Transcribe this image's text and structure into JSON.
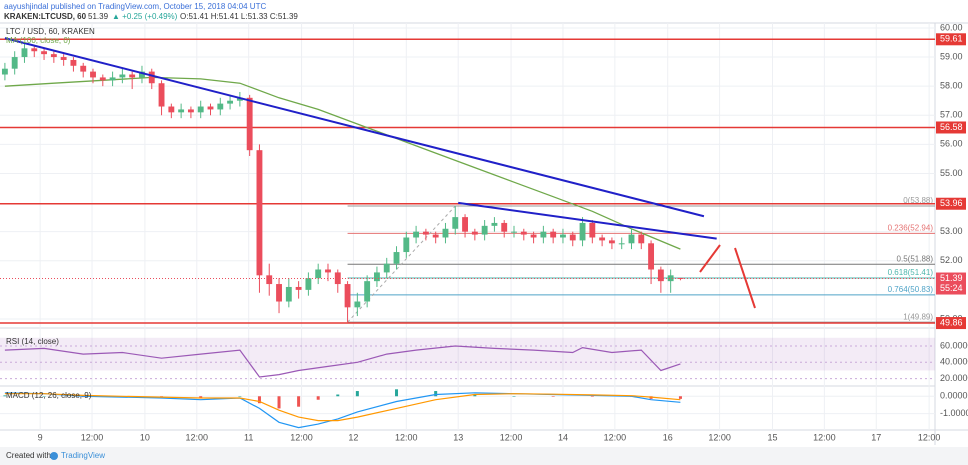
{
  "chart_data": {
    "type": "candlestick",
    "header": "aayushjindal published on TradingView.com, October 15, 2018 04:04 UTC",
    "symbol": "KRAKEN:LTCUSD, 60",
    "change": "▲ +0.25 (+0.49%)",
    "ohlc_text": "O:51.41 H:51.41 L:51.33 C:51.39",
    "title": "LTC / USD, 60, KRAKEN",
    "ma_label": "MA (100, close, 0)",
    "rsi_label": "RSI (14, close)",
    "macd_label": "MACD (12, 26, close, 9)",
    "footer": "Created with",
    "brand": "TradingView",
    "countdown": "55:24",
    "up_color": "#53b987",
    "down_color": "#eb4d5c",
    "xlim": [
      -0.5,
      95
    ],
    "xticks": [
      {
        "value": 3.6,
        "label": "9"
      },
      {
        "value": 8.9,
        "label": "12:00"
      },
      {
        "value": 14.3,
        "label": "10"
      },
      {
        "value": 19.6,
        "label": "12:00"
      },
      {
        "value": 24.9,
        "label": "11"
      },
      {
        "value": 30.3,
        "label": "12:00"
      },
      {
        "value": 35.6,
        "label": "12"
      },
      {
        "value": 41.0,
        "label": "12:00"
      },
      {
        "value": 46.3,
        "label": "13"
      },
      {
        "value": 51.7,
        "label": "12:00"
      },
      {
        "value": 57.0,
        "label": "14"
      },
      {
        "value": 62.3,
        "label": "12:00"
      },
      {
        "value": 67.7,
        "label": "16"
      },
      {
        "value": 73.0,
        "label": "12:00"
      },
      {
        "value": 78.4,
        "label": "15"
      },
      {
        "value": 83.7,
        "label": "12:00"
      },
      {
        "value": 89.0,
        "label": "17"
      },
      {
        "value": 94.4,
        "label": "12:00"
      }
    ],
    "ylim": [
      49.69,
      60.17
    ],
    "yticks": [
      {
        "value": 60,
        "label": "60.00"
      },
      {
        "value": 59,
        "label": "59.00"
      },
      {
        "value": 58,
        "label": "58.00"
      },
      {
        "value": 57,
        "label": "57.00"
      },
      {
        "value": 56,
        "label": "56.00"
      },
      {
        "value": 55,
        "label": "55.00"
      },
      {
        "value": 53,
        "label": "53.00"
      },
      {
        "value": 52,
        "label": "52.00"
      },
      {
        "value": 50,
        "label": "50.00"
      }
    ],
    "grid": true,
    "candles": [
      [
        58.4,
        58.8,
        58.2,
        58.6
      ],
      [
        58.6,
        59.2,
        58.4,
        59.0
      ],
      [
        59.0,
        59.5,
        58.8,
        59.3
      ],
      [
        59.3,
        59.4,
        59.0,
        59.2
      ],
      [
        59.2,
        59.3,
        58.9,
        59.1
      ],
      [
        59.1,
        59.2,
        58.8,
        59.0
      ],
      [
        59.0,
        59.1,
        58.7,
        58.9
      ],
      [
        58.9,
        59.0,
        58.5,
        58.7
      ],
      [
        58.7,
        58.8,
        58.3,
        58.5
      ],
      [
        58.5,
        58.6,
        58.1,
        58.3
      ],
      [
        58.3,
        58.4,
        58.0,
        58.2
      ],
      [
        58.2,
        58.5,
        58.0,
        58.3
      ],
      [
        58.3,
        58.6,
        58.1,
        58.4
      ],
      [
        58.4,
        58.5,
        57.9,
        58.3
      ],
      [
        58.3,
        58.7,
        58.1,
        58.5
      ],
      [
        58.5,
        58.6,
        57.9,
        58.1
      ],
      [
        58.1,
        58.2,
        57.0,
        57.3
      ],
      [
        57.3,
        57.4,
        56.9,
        57.1
      ],
      [
        57.1,
        57.4,
        56.9,
        57.2
      ],
      [
        57.2,
        57.3,
        56.9,
        57.1
      ],
      [
        57.1,
        57.5,
        56.9,
        57.3
      ],
      [
        57.3,
        57.4,
        57.0,
        57.2
      ],
      [
        57.2,
        57.6,
        57.0,
        57.4
      ],
      [
        57.4,
        57.7,
        57.2,
        57.5
      ],
      [
        57.5,
        57.8,
        57.3,
        57.6
      ],
      [
        57.6,
        57.7,
        55.6,
        55.8
      ],
      [
        55.8,
        56.0,
        50.9,
        51.5
      ],
      [
        51.5,
        51.9,
        50.8,
        51.2
      ],
      [
        51.2,
        51.4,
        50.2,
        50.6
      ],
      [
        50.6,
        51.4,
        50.4,
        51.1
      ],
      [
        51.1,
        51.3,
        50.7,
        51.0
      ],
      [
        51.0,
        51.6,
        50.8,
        51.4
      ],
      [
        51.4,
        51.9,
        51.2,
        51.7
      ],
      [
        51.7,
        51.9,
        51.3,
        51.6
      ],
      [
        51.6,
        51.7,
        50.9,
        51.2
      ],
      [
        51.2,
        51.3,
        49.89,
        50.4
      ],
      [
        50.4,
        50.9,
        50.1,
        50.6
      ],
      [
        50.6,
        51.5,
        50.4,
        51.3
      ],
      [
        51.3,
        51.8,
        51.1,
        51.6
      ],
      [
        51.6,
        52.1,
        51.4,
        51.9
      ],
      [
        51.9,
        52.5,
        51.7,
        52.3
      ],
      [
        52.3,
        53.0,
        52.1,
        52.8
      ],
      [
        52.8,
        53.2,
        52.6,
        53.0
      ],
      [
        53.0,
        53.1,
        52.7,
        52.9
      ],
      [
        52.9,
        53.0,
        52.6,
        52.8
      ],
      [
        52.8,
        53.3,
        52.6,
        53.1
      ],
      [
        53.1,
        53.88,
        52.9,
        53.5
      ],
      [
        53.5,
        53.6,
        52.8,
        53.0
      ],
      [
        53.0,
        53.1,
        52.7,
        52.9
      ],
      [
        52.9,
        53.4,
        52.7,
        53.2
      ],
      [
        53.2,
        53.5,
        53.0,
        53.3
      ],
      [
        53.3,
        53.4,
        52.8,
        53.0
      ],
      [
        53.0,
        53.2,
        52.8,
        53.0
      ],
      [
        53.0,
        53.1,
        52.7,
        52.9
      ],
      [
        52.9,
        53.0,
        52.6,
        52.8
      ],
      [
        52.8,
        53.2,
        52.6,
        53.0
      ],
      [
        53.0,
        53.1,
        52.6,
        52.8
      ],
      [
        52.8,
        53.1,
        52.6,
        52.9
      ],
      [
        52.9,
        53.0,
        52.5,
        52.7
      ],
      [
        52.7,
        53.5,
        52.5,
        53.3
      ],
      [
        53.3,
        53.4,
        52.6,
        52.8
      ],
      [
        52.8,
        52.9,
        52.5,
        52.7
      ],
      [
        52.7,
        52.8,
        52.4,
        52.6
      ],
      [
        52.6,
        52.8,
        52.4,
        52.6
      ],
      [
        52.6,
        53.1,
        52.4,
        52.9
      ],
      [
        52.9,
        53.0,
        52.4,
        52.6
      ],
      [
        52.6,
        52.7,
        51.2,
        51.7
      ],
      [
        51.7,
        51.8,
        50.9,
        51.3
      ],
      [
        51.3,
        51.7,
        50.9,
        51.5
      ],
      [
        51.41,
        51.41,
        51.33,
        51.39
      ]
    ],
    "ma": {
      "color": "#6fa84a",
      "x": [
        0,
        5,
        10,
        15,
        20,
        24,
        28,
        32,
        36,
        40,
        44,
        48,
        52,
        56,
        60,
        64,
        69
      ],
      "values": [
        58.0,
        58.1,
        58.2,
        58.3,
        58.25,
        58.1,
        57.6,
        57.2,
        56.7,
        56.2,
        55.7,
        55.2,
        54.7,
        54.2,
        53.7,
        53.1,
        52.4
      ]
    },
    "levels": [
      59.61,
      56.58,
      53.96,
      49.86
    ],
    "level_color": "#e53935",
    "trendlines": [
      [
        [
          0,
          59.65
        ],
        [
          71.4,
          53.53
        ]
      ],
      [
        [
          46.3,
          53.99
        ],
        [
          72.7,
          52.76
        ]
      ]
    ],
    "trend_color": "#2020c8",
    "fib": {
      "start": 35,
      "levels": [
        {
          "value": 53.88,
          "label": "0(53.88)"
        },
        {
          "value": 52.94,
          "label": "0.236(52.94)"
        },
        {
          "value": 51.88,
          "label": "0.5(51.88)"
        },
        {
          "value": 51.41,
          "label": "0.618(51.41)"
        },
        {
          "value": 50.83,
          "label": "0.764(50.83)"
        },
        {
          "value": 49.89,
          "label": "1(49.89)"
        }
      ],
      "colors": [
        "#999999",
        "#e57373",
        "#777777",
        "#4db6ac",
        "#4fa3c7",
        "#999999"
      ]
    },
    "rsi": {
      "color": "#9b59b6",
      "ylim": [
        11,
        82
      ],
      "band": [
        30,
        70
      ],
      "yticks": [
        {
          "value": 60,
          "label": "60.0000"
        },
        {
          "value": 40,
          "label": "40.0000"
        },
        {
          "value": 20,
          "label": "20.0000"
        }
      ],
      "x": [
        0,
        4,
        8,
        12,
        16,
        20,
        24,
        26,
        28,
        30,
        33,
        36,
        39,
        42,
        46,
        50,
        54,
        58,
        59,
        62,
        65,
        67,
        69
      ],
      "values": [
        55,
        57,
        50,
        52,
        45,
        50,
        55,
        22,
        25,
        30,
        35,
        40,
        50,
        55,
        60,
        57,
        55,
        52,
        58,
        52,
        55,
        30,
        38
      ]
    },
    "macd": {
      "macd_color": "#2196f3",
      "signal_color": "#ff9800",
      "hist_up": "#26a69a",
      "hist_down": "#ef5350",
      "ylim": [
        -1.94,
        0.59
      ],
      "yticks": [
        {
          "value": 0,
          "label": "0.0000"
        },
        {
          "value": -1,
          "label": "-1.0000"
        }
      ],
      "x": [
        0,
        4,
        8,
        12,
        16,
        20,
        24,
        26,
        28,
        30,
        32,
        34,
        36,
        40,
        44,
        48,
        52,
        56,
        60,
        64,
        66,
        69
      ],
      "macd": [
        0.2,
        0.15,
        0.0,
        -0.05,
        -0.1,
        -0.2,
        -0.1,
        -0.7,
        -1.5,
        -1.8,
        -1.6,
        -1.3,
        -0.9,
        -0.3,
        0.1,
        0.2,
        0.15,
        0.1,
        0.05,
        0.0,
        -0.2,
        -0.35
      ],
      "signal": [
        0.15,
        0.15,
        0.05,
        0.0,
        -0.05,
        -0.1,
        -0.1,
        -0.3,
        -0.8,
        -1.2,
        -1.4,
        -1.4,
        -1.2,
        -0.7,
        -0.2,
        0.1,
        0.15,
        0.12,
        0.08,
        0.03,
        -0.05,
        -0.2
      ],
      "hist": [
        0.05,
        0,
        -0.05,
        -0.05,
        -0.05,
        -0.1,
        0,
        -0.4,
        -0.7,
        -0.6,
        -0.2,
        0.1,
        0.3,
        0.4,
        0.3,
        0.1,
        0,
        -0.02,
        -0.03,
        -0.03,
        -0.15,
        -0.15
      ]
    }
  }
}
